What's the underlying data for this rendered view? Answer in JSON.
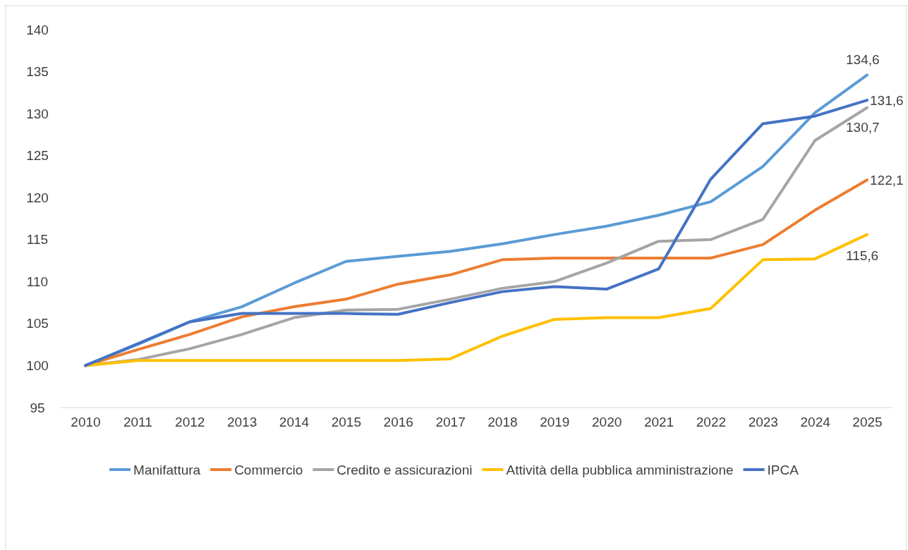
{
  "chart_data": {
    "type": "line",
    "categories": [
      "2010",
      "2011",
      "2012",
      "2013",
      "2014",
      "2015",
      "2016",
      "2017",
      "2018",
      "2019",
      "2020",
      "2021",
      "2022",
      "2023",
      "2024",
      "2025"
    ],
    "ylim": [
      95,
      140
    ],
    "yticks": [
      95,
      100,
      105,
      110,
      115,
      120,
      125,
      130,
      135,
      140
    ],
    "grid": false,
    "legend": "bottom",
    "marker": "none",
    "line_style": "solid",
    "series": [
      {
        "name": "Manifattura",
        "color": "#5b9bd5",
        "values": [
          100,
          102.5,
          105.2,
          107,
          109.8,
          112.4,
          113,
          113.6,
          114.5,
          115.6,
          116.6,
          117.9,
          119.5,
          123.7,
          130.1,
          134.6
        ],
        "value_labels": [
          null,
          null,
          null,
          null,
          null,
          null,
          null,
          null,
          null,
          null,
          null,
          null,
          null,
          null,
          null,
          "134,6"
        ]
      },
      {
        "name": "Commercio",
        "color": "#ed7d31",
        "values": [
          100,
          101.9,
          103.7,
          105.8,
          107,
          107.9,
          109.7,
          110.8,
          112.6,
          112.8,
          112.8,
          112.8,
          112.8,
          114.4,
          118.5,
          122.1
        ],
        "value_labels": [
          null,
          null,
          null,
          null,
          null,
          null,
          null,
          null,
          null,
          null,
          null,
          null,
          null,
          null,
          null,
          "122,1"
        ]
      },
      {
        "name": "Credito e assicurazioni",
        "color": "#a5a5a5",
        "values": [
          100,
          100.7,
          102,
          103.7,
          105.7,
          106.6,
          106.7,
          107.9,
          109.2,
          110,
          112.2,
          114.8,
          115,
          117.4,
          126.8,
          130.7
        ],
        "value_labels": [
          null,
          null,
          null,
          null,
          null,
          null,
          null,
          null,
          null,
          null,
          null,
          null,
          null,
          null,
          null,
          "130,7"
        ]
      },
      {
        "name": "Attività della pubblica amministrazione",
        "color": "#ffc000",
        "values": [
          100,
          100.6,
          100.6,
          100.6,
          100.6,
          100.6,
          100.6,
          100.8,
          103.5,
          105.5,
          105.7,
          105.7,
          106.8,
          112.6,
          112.7,
          115.6
        ],
        "value_labels": [
          null,
          null,
          null,
          null,
          null,
          null,
          null,
          null,
          null,
          null,
          null,
          null,
          null,
          null,
          null,
          "115,6"
        ]
      },
      {
        "name": "IPCA",
        "color": "#4472c4",
        "values": [
          100,
          102.6,
          105.2,
          106.2,
          106.2,
          106.2,
          106.1,
          107.5,
          108.8,
          109.4,
          109.1,
          111.5,
          122.2,
          128.8,
          129.7,
          131.6
        ],
        "value_labels": [
          null,
          null,
          null,
          null,
          null,
          null,
          null,
          null,
          null,
          null,
          null,
          null,
          null,
          null,
          null,
          "131,6"
        ]
      }
    ]
  }
}
